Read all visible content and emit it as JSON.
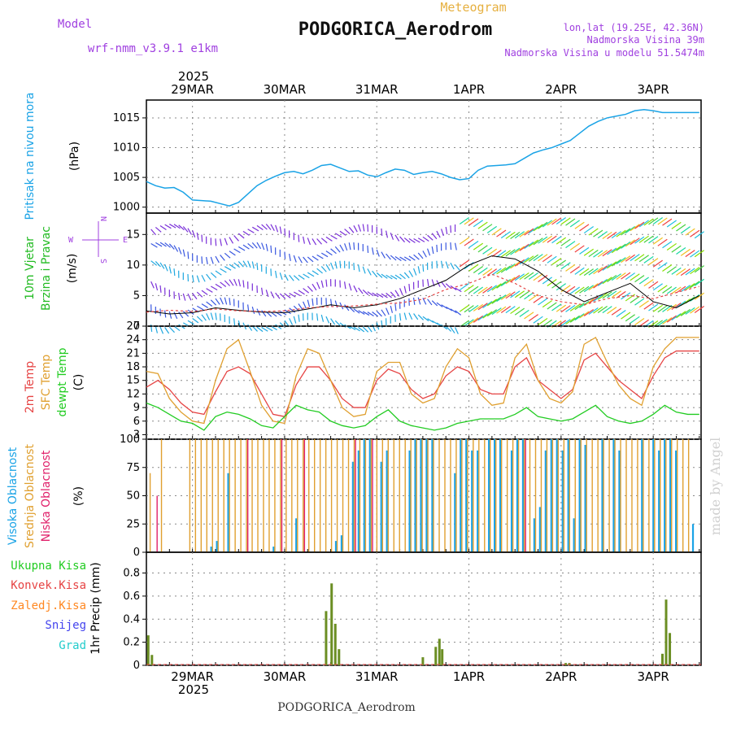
{
  "header": {
    "meteogram_label": "Meteogram",
    "title": "PODGORICA_Aerodrom",
    "model_label": "Model",
    "model_value": "wrf-nmm_v3.9.1 e1km",
    "lonlat": "lon,lat (19.25E, 42.36N)",
    "altitude": "Nadmorska Visina 39m",
    "model_altitude": "Nadmorska Visina u modelu 51.5474m",
    "watermark": "made by Angel",
    "footer_title": "PODGORICA_Aerodrom"
  },
  "colors": {
    "pressure": "#1aa3e6",
    "wind_label": "#22bb22",
    "t2m": "#e64444",
    "sfc": "#e0a030",
    "dewpt": "#22cc22",
    "high_cloud": "#1aa3e6",
    "mid_cloud": "#e0a030",
    "low_cloud": "#e0206a",
    "precip_total": "#22cc22",
    "precip_conv": "#e64444",
    "precip_frz": "#ff8822",
    "precip_snow": "#4444ee",
    "precip_grad": "#22cccc",
    "model": "#a040e0"
  },
  "x_axis": {
    "top_year": "2025",
    "bottom_year": "2025",
    "dates": [
      "29MAR",
      "30MAR",
      "31MAR",
      "1APR",
      "2APR",
      "3APR"
    ]
  },
  "chart_data": [
    {
      "type": "line",
      "id": "pressure",
      "ylabel_lines": [
        "Pritisak na nivou mora"
      ],
      "unit": "(hPa)",
      "ylim": [
        999,
        1018
      ],
      "yticks": [
        1000,
        1005,
        1010,
        1015
      ],
      "grid": true,
      "x": [
        0,
        0.1,
        0.2,
        0.3,
        0.4,
        0.5,
        0.6,
        0.7,
        0.8,
        0.9,
        1.0,
        1.1,
        1.2,
        1.3,
        1.4,
        1.5,
        1.6,
        1.7,
        1.8,
        1.9,
        2.0,
        2.1,
        2.2,
        2.3,
        2.4,
        2.5,
        2.6,
        2.7,
        2.8,
        2.9,
        3.0,
        3.1,
        3.2,
        3.3,
        3.4,
        3.5,
        3.6,
        3.7,
        3.8,
        3.9,
        4.0,
        4.1,
        4.2,
        4.3,
        4.4,
        4.5,
        4.6,
        4.7,
        4.8,
        4.9,
        5.0,
        5.1,
        5.2,
        5.3,
        5.4,
        5.5,
        5.6,
        5.7,
        5.8,
        5.9,
        6.0
      ],
      "series": [
        {
          "values": [
            1004.3,
            1003.6,
            1003.2,
            1003.3,
            1002.5,
            1001.2,
            1001.1,
            1001.0,
            1000.6,
            1000.2,
            1000.8,
            1002.2,
            1003.6,
            1004.5,
            1005.2,
            1005.8,
            1006.0,
            1005.6,
            1006.2,
            1007.0,
            1007.2,
            1006.6,
            1006.0,
            1006.1,
            1005.4,
            1005.1,
            1005.8,
            1006.4,
            1006.2,
            1005.5,
            1005.8,
            1006.0,
            1005.6,
            1005.0,
            1004.6,
            1004.8,
            1006.2,
            1006.9,
            1007.0,
            1007.1,
            1007.3,
            1008.2,
            1009.1,
            1009.6,
            1010.0,
            1010.6,
            1011.2,
            1012.4,
            1013.6,
            1014.4,
            1015.0,
            1015.3,
            1015.6,
            1016.2,
            1016.4,
            1016.2,
            1015.9,
            1015.9,
            1015.9,
            1015.9,
            1015.9
          ]
        }
      ]
    },
    {
      "type": "line",
      "id": "wind",
      "ylabel_lines": [
        "10m Vjetar",
        "Brzina i Pravac"
      ],
      "unit": "(m/s)",
      "ylim": [
        0,
        18.5
      ],
      "yticks": [
        0,
        5,
        10,
        15
      ],
      "grid": true,
      "compass": {
        "n": "N",
        "s": "S",
        "e": "E",
        "w": "W"
      },
      "x": [
        0,
        0.25,
        0.5,
        0.75,
        1.0,
        1.25,
        1.5,
        1.75,
        2.0,
        2.25,
        2.5,
        2.75,
        3.0,
        3.25,
        3.5,
        3.75,
        4.0,
        4.25,
        4.5,
        4.75,
        5.0,
        5.25,
        5.5,
        5.75,
        6.0
      ],
      "series": [
        {
          "values": [
            2.5,
            2.0,
            2.2,
            3.0,
            2.6,
            2.3,
            2.2,
            2.8,
            3.5,
            3.0,
            3.5,
            4.5,
            6.0,
            7.5,
            10.0,
            11.5,
            11.0,
            9.0,
            6.0,
            4.0,
            5.5,
            7.0,
            4.0,
            3.0,
            5.0
          ]
        },
        {
          "values": [
            2.3,
            2.6,
            2.4,
            2.8,
            2.5,
            2.4,
            2.5,
            3.0,
            3.2,
            3.3,
            3.6,
            3.8,
            4.4,
            6.0,
            7.0,
            8.5,
            7.0,
            5.0,
            4.0,
            3.5,
            4.5,
            5.0,
            4.5,
            5.5,
            6.5
          ]
        }
      ]
    },
    {
      "type": "line",
      "id": "temperature",
      "ylabel_lines": [
        "2m Temp",
        "SFC Temp",
        "dewpt Temp"
      ],
      "unit": "(C)",
      "ylim": [
        2,
        27
      ],
      "yticks": [
        3,
        6,
        9,
        12,
        15,
        18,
        21,
        24,
        27
      ],
      "grid": true,
      "x": [
        0,
        0.125,
        0.25,
        0.375,
        0.5,
        0.625,
        0.75,
        0.875,
        1.0,
        1.125,
        1.25,
        1.375,
        1.5,
        1.625,
        1.75,
        1.875,
        2.0,
        2.125,
        2.25,
        2.375,
        2.5,
        2.625,
        2.75,
        2.875,
        3.0,
        3.125,
        3.25,
        3.375,
        3.5,
        3.625,
        3.75,
        3.875,
        4.0,
        4.125,
        4.25,
        4.375,
        4.5,
        4.625,
        4.75,
        4.875,
        5.0,
        5.125,
        5.25,
        5.375,
        5.5,
        5.625,
        5.75,
        5.875,
        6.0
      ],
      "series": [
        {
          "name": "2m",
          "values": [
            13.5,
            15.0,
            13.0,
            10.0,
            8.0,
            7.5,
            12.5,
            17.0,
            18.0,
            16.5,
            12.0,
            7.5,
            7.0,
            14.0,
            18.0,
            18.0,
            15.0,
            11.0,
            9.0,
            9.0,
            15.0,
            17.5,
            16.5,
            13.0,
            11.0,
            12.0,
            16.0,
            18.0,
            17.0,
            13.0,
            12.0,
            12.0,
            18.0,
            20.0,
            15.0,
            13.0,
            11.0,
            13.0,
            19.5,
            21.0,
            18.0,
            15.0,
            13.0,
            11.0,
            16.0,
            20.0,
            21.5,
            21.5,
            21.5
          ]
        },
        {
          "name": "sfc",
          "values": [
            17.0,
            16.5,
            11.0,
            8.0,
            6.0,
            5.5,
            15.0,
            22.0,
            24.0,
            17.0,
            9.5,
            6.0,
            5.5,
            16.0,
            22.0,
            21.0,
            15.0,
            9.0,
            7.0,
            7.5,
            17.0,
            19.0,
            19.0,
            12.0,
            10.0,
            11.0,
            18.0,
            22.0,
            20.0,
            12.0,
            9.5,
            10.0,
            20.0,
            23.0,
            15.0,
            11.0,
            10.0,
            12.5,
            23.0,
            24.5,
            19.0,
            14.0,
            11.0,
            9.5,
            18.0,
            22.0,
            24.5,
            24.5,
            24.5
          ]
        },
        {
          "name": "dewpt",
          "values": [
            10.0,
            9.0,
            7.5,
            6.0,
            5.5,
            4.0,
            7.0,
            8.0,
            7.5,
            6.5,
            5.0,
            4.5,
            7.0,
            9.5,
            8.5,
            8.0,
            6.0,
            5.0,
            4.5,
            5.0,
            7.0,
            8.5,
            6.0,
            5.0,
            4.5,
            4.0,
            4.5,
            5.5,
            6.0,
            6.5,
            6.5,
            6.5,
            7.5,
            9.0,
            7.0,
            6.5,
            6.0,
            6.5,
            8.0,
            9.5,
            7.0,
            6.0,
            5.5,
            6.0,
            7.5,
            9.5,
            8.0,
            7.5,
            7.5
          ]
        }
      ]
    },
    {
      "type": "bar",
      "id": "clouds",
      "ylabel_lines": [
        "Visoka Oblacnost",
        "Srednja Oblacnost",
        "Niska Oblacnost"
      ],
      "unit": "(%)",
      "ylim": [
        0,
        100
      ],
      "yticks": [
        0,
        25,
        50,
        75,
        100
      ],
      "grid": true,
      "series": [
        {
          "name": "Visoka",
          "values": [
            0,
            0,
            0,
            0,
            0,
            0,
            0,
            0,
            0,
            0,
            0,
            5,
            10,
            0,
            70,
            0,
            0,
            0,
            0,
            0,
            0,
            0,
            5,
            0,
            0,
            0,
            30,
            0,
            0,
            0,
            0,
            0,
            0,
            10,
            15,
            0,
            80,
            90,
            100,
            100,
            0,
            80,
            90,
            0,
            0,
            0,
            90,
            100,
            100,
            100,
            100,
            0,
            0,
            0,
            70,
            100,
            100,
            90,
            90,
            0,
            100,
            100,
            100,
            0,
            90,
            100,
            100,
            0,
            30,
            40,
            90,
            100,
            100,
            90,
            100,
            30,
            100,
            95,
            0,
            0,
            100,
            0,
            100,
            90,
            0,
            0,
            0,
            100,
            0,
            100,
            90,
            100,
            100,
            90,
            0,
            0,
            25
          ]
        },
        {
          "name": "Srednja",
          "values": [
            70,
            0,
            100,
            0,
            0,
            0,
            0,
            100,
            100,
            100,
            100,
            100,
            100,
            100,
            100,
            100,
            100,
            100,
            100,
            100,
            100,
            100,
            100,
            100,
            100,
            100,
            100,
            100,
            100,
            100,
            100,
            100,
            100,
            100,
            100,
            100,
            100,
            100,
            100,
            100,
            100,
            100,
            100,
            100,
            100,
            100,
            100,
            100,
            100,
            100,
            100,
            100,
            100,
            100,
            100,
            100,
            100,
            100,
            100,
            100,
            100,
            100,
            100,
            100,
            100,
            100,
            100,
            100,
            100,
            100,
            100,
            100,
            100,
            100,
            100,
            100,
            100,
            100,
            100,
            100,
            100,
            100,
            100,
            100,
            100,
            100,
            100,
            100,
            100,
            100,
            100,
            100,
            100,
            100,
            100,
            100,
            0
          ]
        },
        {
          "name": "Niska",
          "values": [
            0,
            50,
            0,
            0,
            0,
            0,
            0,
            0,
            0,
            0,
            0,
            0,
            0,
            0,
            0,
            0,
            0,
            100,
            0,
            0,
            0,
            0,
            0,
            100,
            0,
            0,
            0,
            100,
            0,
            0,
            0,
            0,
            0,
            0,
            0,
            0,
            100,
            0,
            0,
            100,
            0,
            0,
            0,
            0,
            0,
            0,
            0,
            0,
            0,
            0,
            0,
            0,
            0,
            0,
            0,
            0,
            0,
            0,
            0,
            0,
            0,
            0,
            0,
            0,
            0,
            0,
            100,
            0,
            0,
            0,
            0,
            0,
            0,
            0,
            0,
            0,
            0,
            0,
            0,
            0,
            0,
            0,
            0,
            0,
            0,
            0,
            0,
            0,
            0,
            0,
            0,
            0,
            0,
            0,
            0,
            0,
            0
          ]
        }
      ]
    },
    {
      "type": "bar",
      "id": "precip",
      "ylabel_lines": [
        "1hr Precip (mm)"
      ],
      "legend": [
        "Ukupna Kisa",
        "Konvek.Kisa",
        "Zaledj.Kisa",
        "Snijeg",
        "Grad"
      ],
      "ylim": [
        0,
        0.98
      ],
      "yticks": [
        0,
        0.2,
        0.4,
        0.6,
        0.8
      ],
      "grid": true,
      "x": [
        0.02,
        0.06,
        1.95,
        2.01,
        2.05,
        2.09,
        2.13,
        3.0,
        3.14,
        3.18,
        3.21,
        3.25,
        4.55,
        4.59,
        5.6,
        5.64,
        5.68
      ],
      "series": [
        {
          "name": "Ukupna Kisa",
          "values": [
            0.26,
            0.09,
            0.47,
            0.71,
            0.36,
            0.14,
            0.0,
            0.07,
            0.16,
            0.23,
            0.14,
            0.0,
            0.02,
            0.02,
            0.1,
            0.57,
            0.28
          ]
        }
      ]
    }
  ]
}
